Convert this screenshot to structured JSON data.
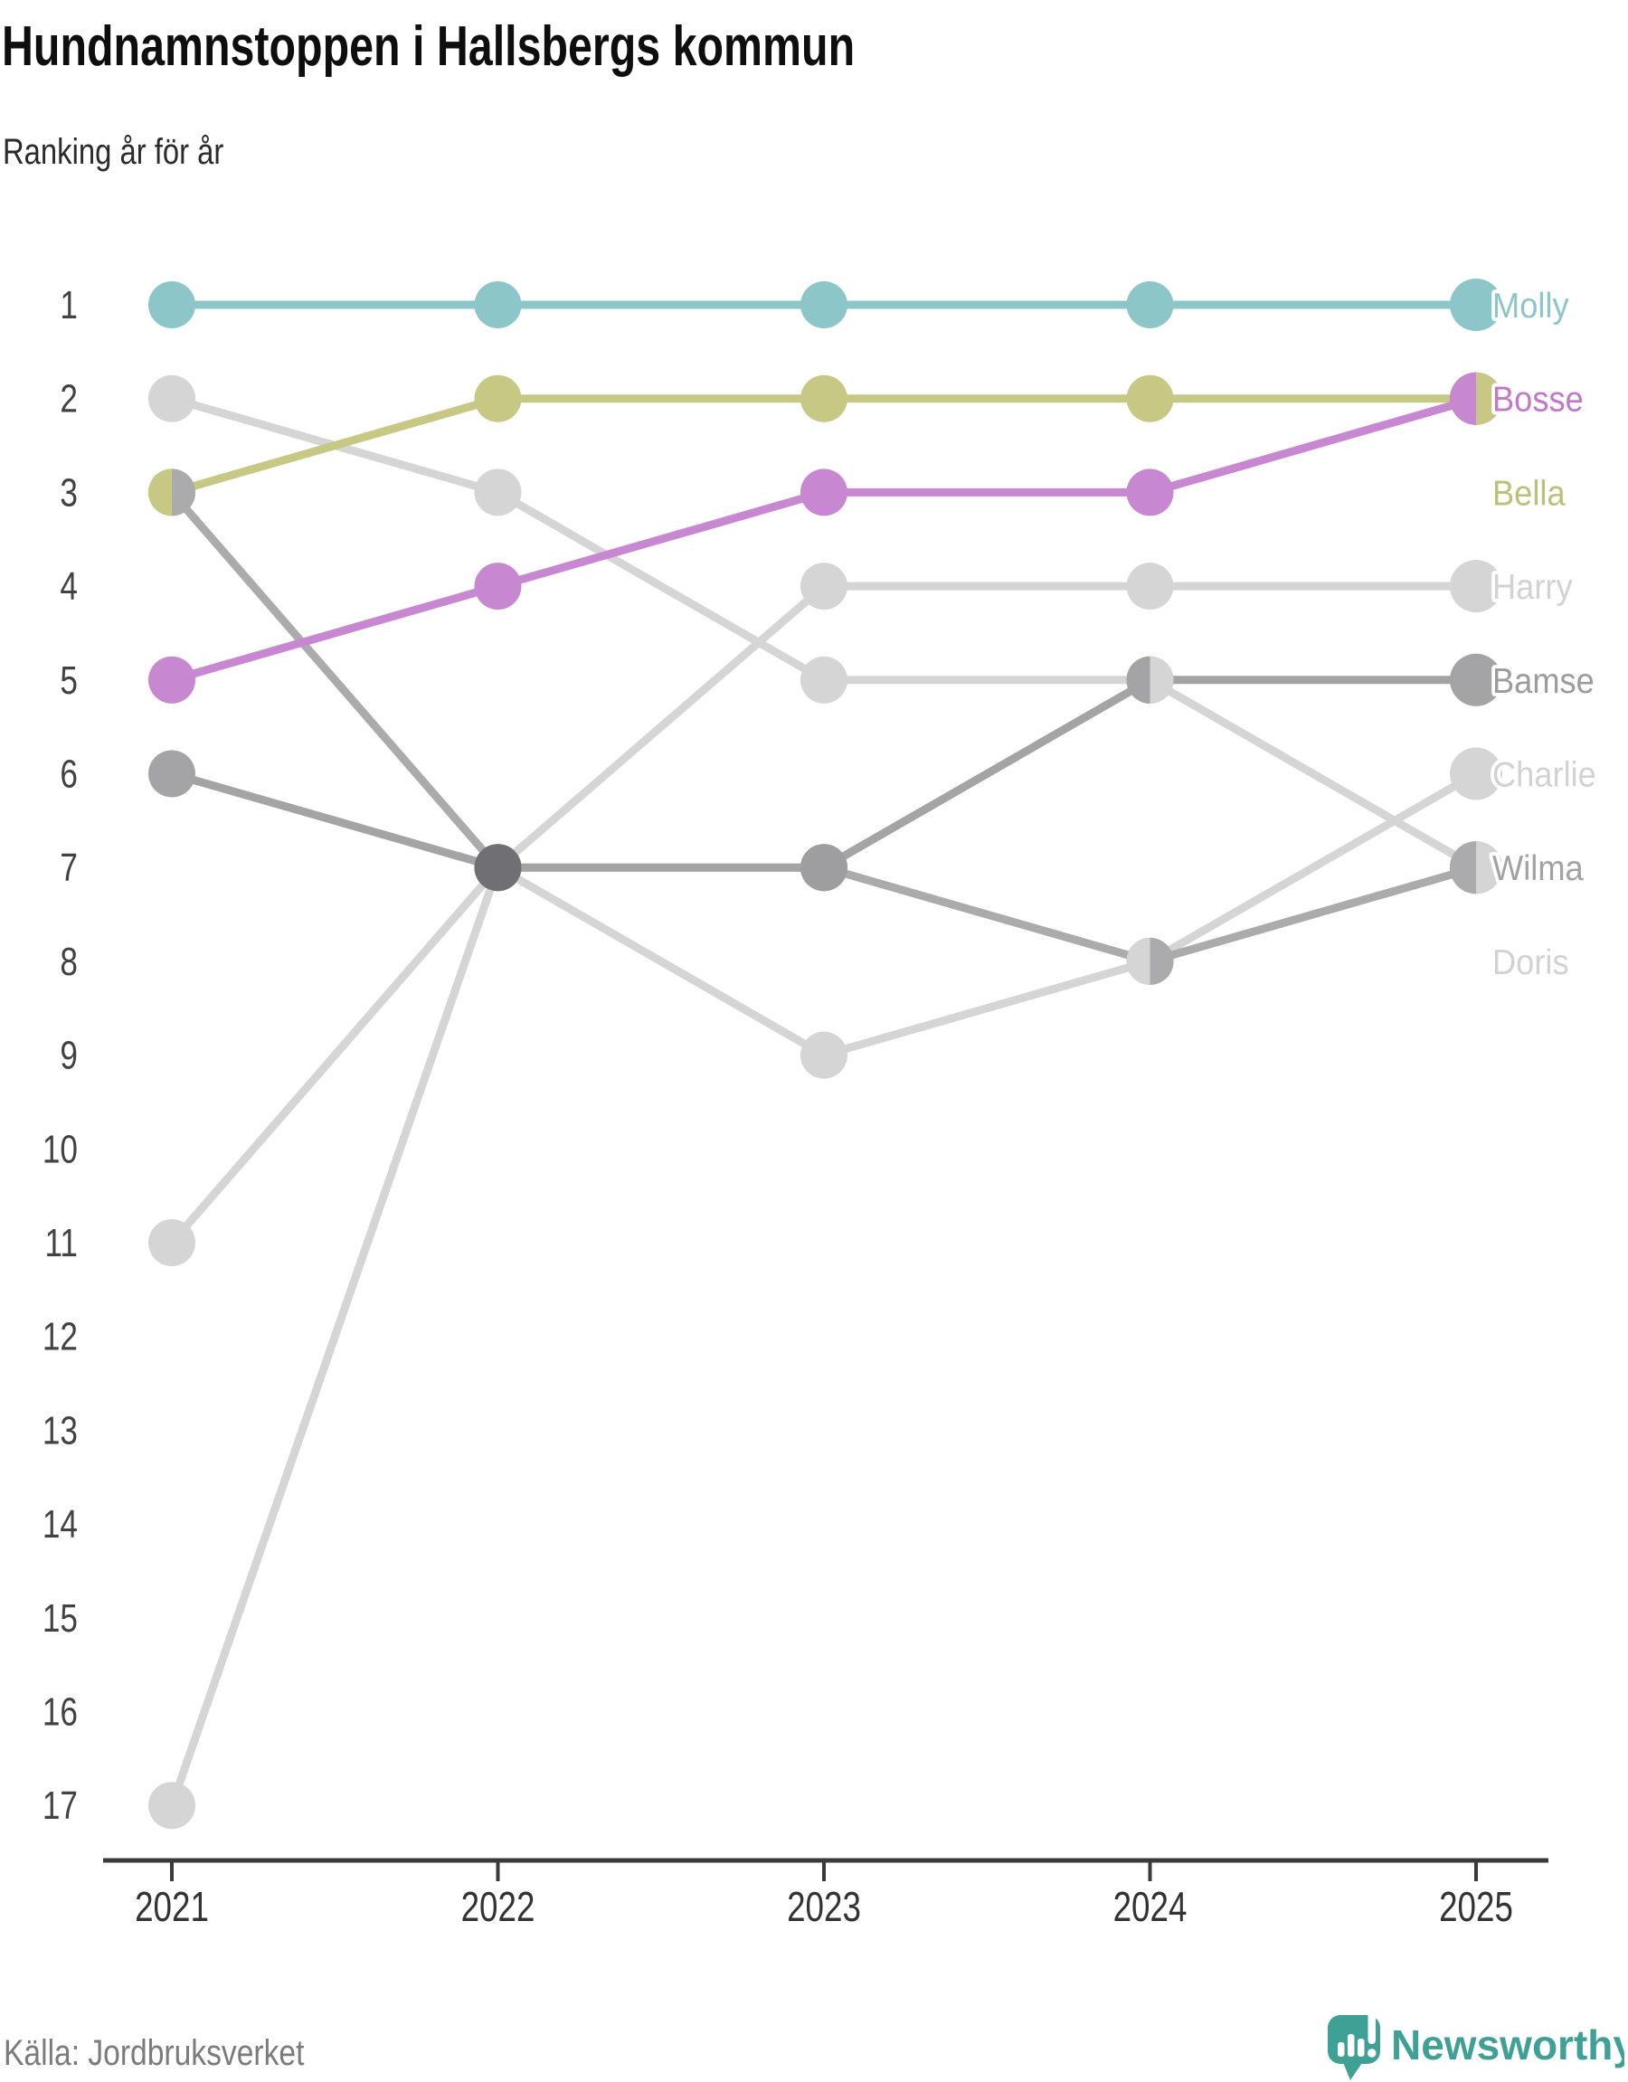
{
  "header": {
    "title": "Hundnamnstoppen i Hallsbergs kommun",
    "subtitle": "Ranking år för år"
  },
  "chart_data": {
    "type": "line",
    "subtype": "bump-ranking",
    "title": "Hundnamnstoppen i Hallsbergs kommun",
    "subtitle": "Ranking år för år",
    "x": [
      2021,
      2022,
      2023,
      2024,
      2025
    ],
    "y_ticks": [
      1,
      2,
      3,
      4,
      5,
      6,
      7,
      8,
      9,
      10,
      11,
      12,
      13,
      14,
      15,
      16,
      17
    ],
    "ylim": [
      1,
      17
    ],
    "y_inverted": true,
    "grid": false,
    "legend_position": "right-edge-labels",
    "series": [
      {
        "name": "Harry",
        "color": "#d5d5d5",
        "label_color": "#d2d2d2",
        "label_slot": 4,
        "ranks": [
          11,
          7,
          4,
          4,
          4
        ]
      },
      {
        "name": "Charlie",
        "color": "#d5d5d5",
        "label_color": "#d2d2d2",
        "label_slot": 6,
        "ranks": [
          17,
          7,
          9,
          8,
          6
        ]
      },
      {
        "name": "Doris",
        "color": "#d5d5d5",
        "label_color": "#d2d2d2",
        "label_slot": 8,
        "ranks": [
          2,
          3,
          5,
          5,
          7
        ]
      },
      {
        "name": "Wilma",
        "color": "#ababad",
        "label_color": "#a2a2a4",
        "label_slot": 7,
        "ranks": [
          3,
          7,
          7,
          8,
          7
        ]
      },
      {
        "name": "Bamse",
        "color": "#a4a4a6",
        "label_color": "#9c9c9e",
        "label_slot": 5,
        "ranks": [
          6,
          7,
          7,
          5,
          5
        ]
      },
      {
        "name": "Bella",
        "color": "#c7c884",
        "label_color": "#bcc078",
        "label_slot": 3,
        "ranks": [
          3,
          2,
          2,
          2,
          2
        ]
      },
      {
        "name": "Bosse",
        "color": "#c787d1",
        "label_color": "#c178cb",
        "label_slot": 2,
        "ranks": [
          5,
          4,
          3,
          3,
          2
        ]
      },
      {
        "name": "Molly",
        "color": "#8dc6c9",
        "label_color": "#8dc6c9",
        "label_slot": 1,
        "ranks": [
          1,
          1,
          1,
          1,
          1
        ]
      }
    ],
    "tie_nodes": [
      {
        "year_index": 0,
        "rank": 3,
        "left": "#c7c884",
        "right": "#ababad"
      },
      {
        "year_index": 1,
        "rank": 7,
        "solid": "#707074"
      },
      {
        "year_index": 2,
        "rank": 7,
        "solid": "#9e9ea0"
      },
      {
        "year_index": 3,
        "rank": 5,
        "left": "#a4a4a6",
        "right": "#d5d5d5"
      },
      {
        "year_index": 3,
        "rank": 8,
        "left": "#d5d5d5",
        "right": "#ababad"
      },
      {
        "year_index": 4,
        "rank": 2,
        "left": "#c787d1",
        "right": "#c7c884"
      },
      {
        "year_index": 4,
        "rank": 7,
        "left": "#ababad",
        "right": "#d5d5d5"
      }
    ]
  },
  "footer": {
    "source": "Källa: Jordbruksverket",
    "brand": "Newsworthy",
    "brand_color": "#3fa096"
  }
}
